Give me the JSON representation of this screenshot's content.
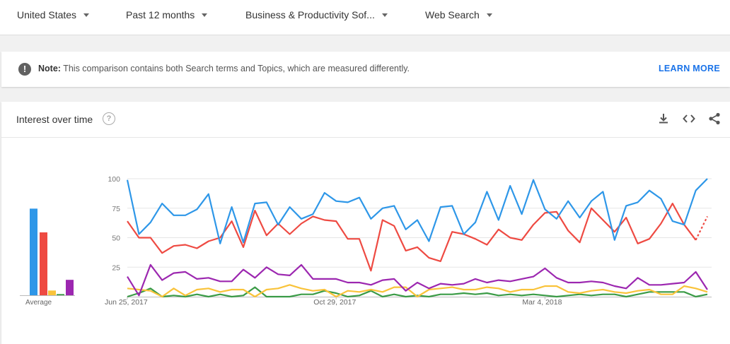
{
  "filters": [
    {
      "label": "United States"
    },
    {
      "label": "Past 12 months"
    },
    {
      "label": "Business & Productivity Sof..."
    },
    {
      "label": "Web Search"
    }
  ],
  "note": {
    "prefix": "Note:",
    "text": " This comparison contains both Search terms and Topics, which are measured differently.",
    "link": "LEARN MORE"
  },
  "card": {
    "title": "Interest over time",
    "tools": [
      "download-icon",
      "embed-icon",
      "share-icon"
    ]
  },
  "colors": {
    "blue": "#2e97e8",
    "red": "#ee4a42",
    "yellow": "#f9c33a",
    "green": "#3a9b46",
    "purple": "#9c27b0"
  },
  "averages": {
    "label": "Average",
    "values": [
      73,
      53,
      4,
      1,
      13
    ]
  },
  "chart_data": {
    "type": "line",
    "y_ticks": [
      "25",
      "50",
      "75",
      "100"
    ],
    "ylim": [
      0,
      100
    ],
    "x_tick_labels": [
      "Jun 25, 2017",
      "Oct 29, 2017",
      "Mar 4, 2018"
    ],
    "x_tick_index": [
      0,
      18,
      36
    ],
    "series": [
      {
        "color": "#2e97e8",
        "values": [
          99,
          53,
          63,
          79,
          69,
          69,
          74,
          87,
          45,
          76,
          46,
          79,
          80,
          61,
          76,
          66,
          70,
          88,
          81,
          80,
          84,
          66,
          75,
          77,
          57,
          65,
          47,
          76,
          77,
          53,
          63,
          89,
          65,
          94,
          70,
          99,
          74,
          66,
          81,
          67,
          81,
          89,
          48,
          77,
          80,
          90,
          83,
          64,
          61,
          90,
          100
        ]
      },
      {
        "color": "#ee4a42",
        "values": [
          64,
          50,
          50,
          37,
          43,
          44,
          41,
          47,
          50,
          64,
          42,
          73,
          52,
          62,
          53,
          62,
          68,
          65,
          64,
          49,
          49,
          22,
          65,
          60,
          39,
          42,
          33,
          30,
          55,
          53,
          49,
          44,
          57,
          50,
          48,
          61,
          71,
          72,
          56,
          46,
          75,
          65,
          55,
          67,
          45,
          49,
          62,
          79,
          61,
          48,
          68
        ],
        "dashed_from": 49
      },
      {
        "color": "#f9c33a",
        "values": [
          7,
          6,
          5,
          0,
          7,
          1,
          6,
          7,
          4,
          6,
          6,
          0,
          6,
          7,
          10,
          7,
          5,
          6,
          0,
          5,
          4,
          6,
          4,
          8,
          8,
          0,
          6,
          7,
          8,
          6,
          6,
          8,
          7,
          4,
          6,
          6,
          9,
          9,
          4,
          3,
          5,
          6,
          4,
          3,
          5,
          6,
          2,
          2,
          9,
          7,
          4
        ]
      },
      {
        "color": "#3a9b46",
        "values": [
          0,
          3,
          7,
          0,
          1,
          0,
          2,
          0,
          2,
          0,
          1,
          8,
          0,
          0,
          0,
          2,
          2,
          5,
          3,
          0,
          1,
          5,
          0,
          2,
          0,
          1,
          0,
          2,
          2,
          3,
          2,
          3,
          1,
          2,
          1,
          2,
          1,
          0,
          1,
          2,
          1,
          2,
          2,
          0,
          2,
          4,
          4,
          4,
          4,
          0,
          2
        ]
      },
      {
        "color": "#9c27b0",
        "values": [
          17,
          1,
          27,
          14,
          20,
          21,
          15,
          16,
          13,
          13,
          23,
          16,
          25,
          19,
          18,
          27,
          15,
          15,
          15,
          12,
          12,
          10,
          14,
          15,
          5,
          12,
          7,
          11,
          10,
          11,
          15,
          12,
          14,
          13,
          15,
          17,
          24,
          16,
          12,
          12,
          13,
          12,
          9,
          7,
          16,
          10,
          10,
          11,
          12,
          21,
          6
        ]
      }
    ]
  }
}
